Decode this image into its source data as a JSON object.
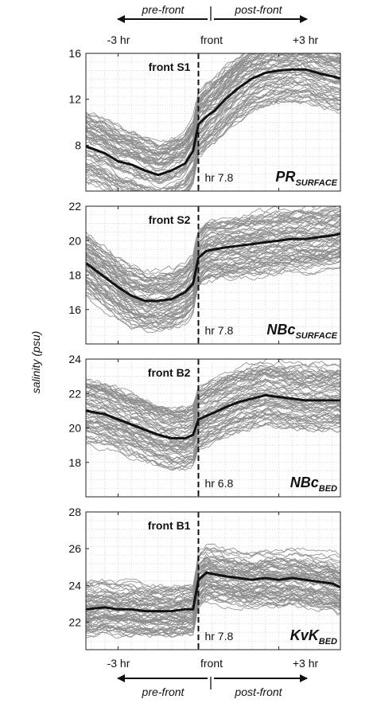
{
  "figure": {
    "ylabel": "salinity (psu)",
    "top_x_labels": [
      "-3 hr",
      "front",
      "+3 hr"
    ],
    "bottom_x_labels": [
      "-3 hr",
      "front",
      "+3 hr"
    ],
    "arrows": {
      "left": "pre-front",
      "right": "post-front"
    }
  },
  "chart_data": [
    {
      "type": "line",
      "title": "front S1",
      "label": "PR",
      "label_sub": "SURFACE",
      "front_note": "hr 7.8",
      "x_ticks": [
        -3,
        0,
        3
      ],
      "x_tick_labels": [
        "-3 hr",
        "front",
        "+3 hr"
      ],
      "xlim": [
        -4.2,
        5.3
      ],
      "ylim": [
        4,
        16
      ],
      "y_ticks": [
        8,
        12,
        16
      ],
      "grid": true,
      "series": [
        {
          "role": "mean",
          "x": [
            -4.2,
            -3.5,
            -3.0,
            -2.5,
            -2.0,
            -1.5,
            -1.0,
            -0.5,
            -0.2,
            0.0,
            0.3,
            0.6,
            1.0,
            1.5,
            2.0,
            2.5,
            3.0,
            3.5,
            4.0,
            4.6,
            5.0,
            5.3
          ],
          "y": [
            7.9,
            7.3,
            6.6,
            6.3,
            5.8,
            5.4,
            5.8,
            6.4,
            7.5,
            9.8,
            10.5,
            11.0,
            12.0,
            13.0,
            13.8,
            14.3,
            14.5,
            14.6,
            14.6,
            14.2,
            14.0,
            13.8
          ]
        }
      ]
    },
    {
      "type": "line",
      "title": "front S2",
      "label": "NBc",
      "label_sub": "SURFACE",
      "front_note": "hr 7.8",
      "x_ticks": [
        -3,
        0,
        3
      ],
      "x_tick_labels": [
        "-3 hr",
        "front",
        "+3 hr"
      ],
      "xlim": [
        -4.2,
        5.3
      ],
      "ylim": [
        14,
        22
      ],
      "y_ticks": [
        16,
        18,
        20,
        22
      ],
      "grid": true,
      "series": [
        {
          "role": "mean",
          "x": [
            -4.2,
            -3.6,
            -3.0,
            -2.5,
            -2.0,
            -1.5,
            -1.0,
            -0.5,
            -0.2,
            0.0,
            0.3,
            0.6,
            1.0,
            1.5,
            2.0,
            2.5,
            3.0,
            3.5,
            4.0,
            4.5,
            5.0,
            5.3
          ],
          "y": [
            18.7,
            18.0,
            17.3,
            16.8,
            16.5,
            16.5,
            16.6,
            17.0,
            17.5,
            19.0,
            19.4,
            19.5,
            19.6,
            19.7,
            19.8,
            19.9,
            20.0,
            20.1,
            20.1,
            20.2,
            20.3,
            20.4
          ]
        }
      ]
    },
    {
      "type": "line",
      "title": "front B2",
      "label": "NBc",
      "label_sub": "BED",
      "front_note": "hr 6.8",
      "x_ticks": [
        -3,
        0,
        3
      ],
      "x_tick_labels": [
        "-3 hr",
        "front",
        "+3 hr"
      ],
      "xlim": [
        -4.2,
        5.3
      ],
      "ylim": [
        16,
        24
      ],
      "y_ticks": [
        18,
        20,
        22,
        24
      ],
      "grid": true,
      "series": [
        {
          "role": "mean",
          "x": [
            -4.2,
            -3.5,
            -3.0,
            -2.5,
            -2.0,
            -1.5,
            -1.0,
            -0.5,
            -0.2,
            0.0,
            0.3,
            0.6,
            1.0,
            1.5,
            2.0,
            2.5,
            3.0,
            3.5,
            4.0,
            4.5,
            5.0,
            5.3
          ],
          "y": [
            21.0,
            20.8,
            20.5,
            20.2,
            19.9,
            19.6,
            19.4,
            19.4,
            19.6,
            20.5,
            20.7,
            20.9,
            21.2,
            21.5,
            21.7,
            21.9,
            21.8,
            21.7,
            21.6,
            21.6,
            21.6,
            21.6
          ]
        }
      ]
    },
    {
      "type": "line",
      "title": "front B1",
      "label": "KvK",
      "label_sub": "BED",
      "front_note": "hr 7.8",
      "x_ticks": [
        -3,
        0,
        3
      ],
      "x_tick_labels": [
        "-3 hr",
        "front",
        "+3 hr"
      ],
      "xlim": [
        -4.2,
        5.3
      ],
      "ylim": [
        20.5,
        28
      ],
      "y_ticks": [
        22,
        24,
        26,
        28
      ],
      "grid": true,
      "series": [
        {
          "role": "mean",
          "x": [
            -4.2,
            -3.5,
            -3.0,
            -2.5,
            -2.0,
            -1.5,
            -1.0,
            -0.5,
            -0.2,
            0.0,
            0.3,
            0.6,
            1.0,
            1.5,
            2.0,
            2.5,
            3.0,
            3.5,
            4.0,
            4.5,
            5.0,
            5.3
          ],
          "y": [
            22.7,
            22.8,
            22.7,
            22.7,
            22.6,
            22.6,
            22.6,
            22.7,
            22.7,
            24.3,
            24.7,
            24.6,
            24.5,
            24.4,
            24.3,
            24.4,
            24.3,
            24.4,
            24.3,
            24.2,
            24.1,
            23.9
          ]
        }
      ]
    }
  ]
}
